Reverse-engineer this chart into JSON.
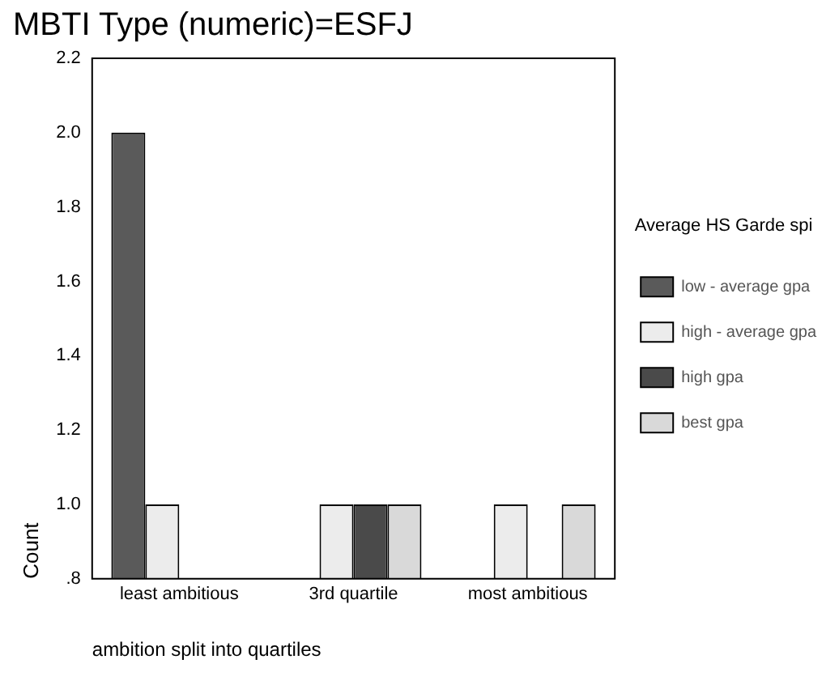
{
  "chart_data": {
    "type": "bar",
    "title": "MBTI Type (numeric)=ESFJ",
    "xlabel": "ambition split into quartiles",
    "ylabel": "Count",
    "legend_title": "Average HS Garde spi",
    "categories": [
      "least ambitious",
      "3rd quartile",
      "most ambitious"
    ],
    "series": [
      {
        "name": "low - average gpa",
        "color": "#5a5a5a",
        "values": [
          2,
          null,
          null
        ]
      },
      {
        "name": "high - average gpa",
        "color": "#ececec",
        "values": [
          1,
          1,
          1
        ]
      },
      {
        "name": "high gpa",
        "color": "#4a4a4a",
        "values": [
          null,
          1,
          null
        ]
      },
      {
        "name": "best gpa",
        "color": "#d9d9d9",
        "values": [
          null,
          1,
          1
        ]
      }
    ],
    "ylim": [
      0.8,
      2.2
    ],
    "yticks": [
      {
        "value": 0.8,
        "label": ".8"
      },
      {
        "value": 1,
        "label": "1.0"
      },
      1.2,
      1.4,
      1.6,
      1.8,
      {
        "value": 2,
        "label": "2.0"
      },
      2.2
    ],
    "grid": false,
    "legend": "right"
  }
}
